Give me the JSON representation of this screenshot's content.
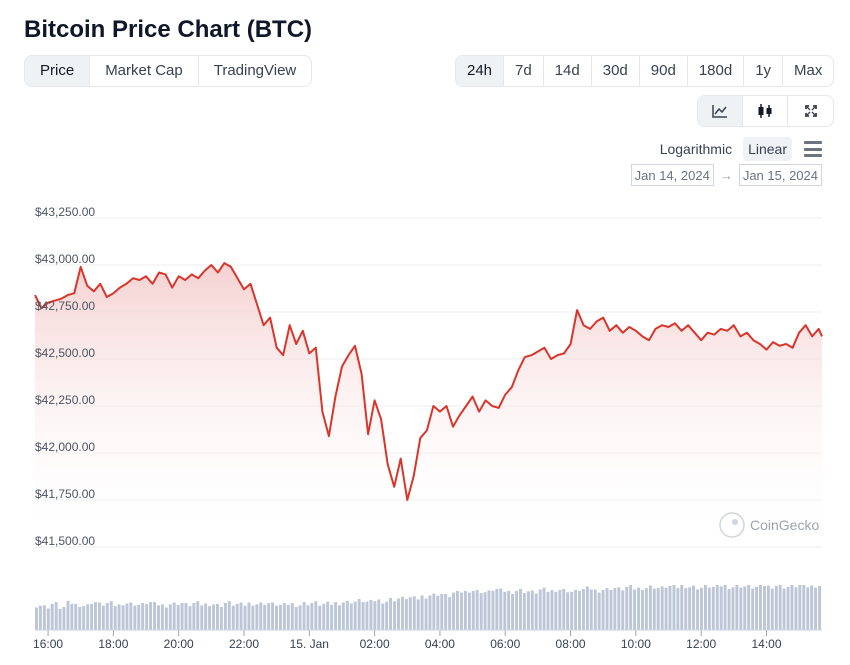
{
  "title": "Bitcoin Price Chart (BTC)",
  "view_tabs": [
    {
      "label": "Price",
      "active": true
    },
    {
      "label": "Market Cap",
      "active": false
    },
    {
      "label": "TradingView",
      "active": false
    }
  ],
  "range_tabs": [
    {
      "label": "24h",
      "active": true
    },
    {
      "label": "7d",
      "active": false
    },
    {
      "label": "14d",
      "active": false
    },
    {
      "label": "30d",
      "active": false
    },
    {
      "label": "90d",
      "active": false
    },
    {
      "label": "180d",
      "active": false
    },
    {
      "label": "1y",
      "active": false
    },
    {
      "label": "Max",
      "active": false
    }
  ],
  "chart_type_buttons": [
    {
      "icon": "line-chart-icon",
      "active": true
    },
    {
      "icon": "candlestick-icon",
      "active": false
    },
    {
      "icon": "fullscreen-icon",
      "active": false
    }
  ],
  "scale": {
    "log_label": "Logarithmic",
    "linear_label": "Linear",
    "selected": "Linear"
  },
  "date_range": {
    "from": "Jan 14, 2024",
    "to": "Jan 15, 2024",
    "arrow": "→"
  },
  "watermark": "CoinGecko",
  "colors": {
    "line": "#d9352b",
    "area_top": "#f4cccc",
    "volume": "#bcc6d6",
    "grid": "#eeeeee",
    "active_bg": "#eff2f5"
  },
  "chart_data": {
    "type": "line",
    "title": "Bitcoin Price Chart (BTC)",
    "xlabel": "",
    "ylabel": "",
    "ylim": [
      41500,
      43250
    ],
    "y_ticks": [
      43250,
      43000,
      42750,
      42500,
      42250,
      42000,
      41750,
      41500
    ],
    "y_tick_labels": [
      "$43,250.00",
      "$43,000.00",
      "$42,750.00",
      "$42,500.00",
      "$42,250.00",
      "$42,000.00",
      "$41,750.00",
      "$41,500.00"
    ],
    "x_ticks": [
      {
        "label": "16:00",
        "t": 0
      },
      {
        "label": "18:00",
        "t": 2
      },
      {
        "label": "20:00",
        "t": 4
      },
      {
        "label": "22:00",
        "t": 6
      },
      {
        "label": "15. Jan",
        "t": 8
      },
      {
        "label": "02:00",
        "t": 10
      },
      {
        "label": "04:00",
        "t": 12
      },
      {
        "label": "06:00",
        "t": 14
      },
      {
        "label": "08:00",
        "t": 16
      },
      {
        "label": "10:00",
        "t": 18
      },
      {
        "label": "12:00",
        "t": 20
      },
      {
        "label": "14:00",
        "t": 22
      }
    ],
    "x_range": [
      -0.4,
      23.7
    ],
    "grid": true,
    "legend": "none",
    "series": [
      {
        "points": [
          [
            -0.4,
            42840
          ],
          [
            -0.2,
            42770
          ],
          [
            0.0,
            42800
          ],
          [
            0.2,
            42810
          ],
          [
            0.4,
            42820
          ],
          [
            0.6,
            42840
          ],
          [
            0.8,
            42850
          ],
          [
            1.0,
            42990
          ],
          [
            1.2,
            42890
          ],
          [
            1.4,
            42860
          ],
          [
            1.6,
            42900
          ],
          [
            1.8,
            42830
          ],
          [
            2.0,
            42850
          ],
          [
            2.2,
            42880
          ],
          [
            2.4,
            42900
          ],
          [
            2.6,
            42930
          ],
          [
            2.8,
            42920
          ],
          [
            3.0,
            42940
          ],
          [
            3.2,
            42900
          ],
          [
            3.4,
            42960
          ],
          [
            3.6,
            42950
          ],
          [
            3.8,
            42880
          ],
          [
            4.0,
            42940
          ],
          [
            4.2,
            42920
          ],
          [
            4.4,
            42950
          ],
          [
            4.6,
            42930
          ],
          [
            4.8,
            42970
          ],
          [
            5.0,
            43000
          ],
          [
            5.2,
            42960
          ],
          [
            5.4,
            43010
          ],
          [
            5.6,
            42990
          ],
          [
            5.8,
            42930
          ],
          [
            6.0,
            42870
          ],
          [
            6.2,
            42900
          ],
          [
            6.4,
            42790
          ],
          [
            6.6,
            42680
          ],
          [
            6.8,
            42720
          ],
          [
            7.0,
            42560
          ],
          [
            7.2,
            42520
          ],
          [
            7.4,
            42680
          ],
          [
            7.6,
            42580
          ],
          [
            7.8,
            42650
          ],
          [
            8.0,
            42530
          ],
          [
            8.2,
            42560
          ],
          [
            8.4,
            42220
          ],
          [
            8.6,
            42090
          ],
          [
            8.8,
            42300
          ],
          [
            9.0,
            42460
          ],
          [
            9.2,
            42520
          ],
          [
            9.4,
            42570
          ],
          [
            9.6,
            42420
          ],
          [
            9.8,
            42100
          ],
          [
            10.0,
            42280
          ],
          [
            10.2,
            42180
          ],
          [
            10.4,
            41940
          ],
          [
            10.6,
            41820
          ],
          [
            10.8,
            41970
          ],
          [
            11.0,
            41750
          ],
          [
            11.2,
            41880
          ],
          [
            11.4,
            42080
          ],
          [
            11.6,
            42120
          ],
          [
            11.8,
            42250
          ],
          [
            12.0,
            42220
          ],
          [
            12.2,
            42250
          ],
          [
            12.4,
            42140
          ],
          [
            12.6,
            42200
          ],
          [
            12.8,
            42250
          ],
          [
            13.0,
            42300
          ],
          [
            13.2,
            42220
          ],
          [
            13.4,
            42280
          ],
          [
            13.6,
            42250
          ],
          [
            13.8,
            42240
          ],
          [
            14.0,
            42310
          ],
          [
            14.2,
            42350
          ],
          [
            14.4,
            42440
          ],
          [
            14.6,
            42510
          ],
          [
            14.8,
            42520
          ],
          [
            15.0,
            42540
          ],
          [
            15.2,
            42560
          ],
          [
            15.4,
            42500
          ],
          [
            15.6,
            42520
          ],
          [
            15.8,
            42530
          ],
          [
            16.0,
            42580
          ],
          [
            16.2,
            42760
          ],
          [
            16.4,
            42680
          ],
          [
            16.6,
            42660
          ],
          [
            16.8,
            42700
          ],
          [
            17.0,
            42720
          ],
          [
            17.2,
            42650
          ],
          [
            17.4,
            42680
          ],
          [
            17.6,
            42640
          ],
          [
            17.8,
            42670
          ],
          [
            18.0,
            42650
          ],
          [
            18.2,
            42620
          ],
          [
            18.4,
            42600
          ],
          [
            18.6,
            42660
          ],
          [
            18.8,
            42680
          ],
          [
            19.0,
            42670
          ],
          [
            19.2,
            42690
          ],
          [
            19.4,
            42650
          ],
          [
            19.6,
            42680
          ],
          [
            19.8,
            42640
          ],
          [
            20.0,
            42600
          ],
          [
            20.2,
            42640
          ],
          [
            20.4,
            42630
          ],
          [
            20.6,
            42660
          ],
          [
            20.8,
            42650
          ],
          [
            21.0,
            42680
          ],
          [
            21.2,
            42620
          ],
          [
            21.4,
            42640
          ],
          [
            21.6,
            42600
          ],
          [
            21.8,
            42580
          ],
          [
            22.0,
            42550
          ],
          [
            22.2,
            42590
          ],
          [
            22.4,
            42570
          ],
          [
            22.6,
            42580
          ],
          [
            22.8,
            42560
          ],
          [
            23.0,
            42640
          ],
          [
            23.2,
            42680
          ],
          [
            23.4,
            42620
          ],
          [
            23.6,
            42660
          ],
          [
            23.7,
            42620
          ]
        ]
      }
    ],
    "volume": [
      0.55,
      0.52,
      0.58,
      0.5,
      0.6,
      0.56,
      0.54,
      0.62,
      0.57,
      0.59,
      0.55,
      0.6,
      0.58,
      0.56,
      0.61,
      0.57,
      0.55,
      0.58,
      0.6,
      0.56,
      0.59,
      0.57,
      0.58,
      0.55,
      0.6,
      0.57,
      0.56,
      0.59,
      0.58,
      0.6,
      0.57,
      0.55,
      0.58,
      0.56,
      0.59,
      0.6,
      0.57,
      0.58,
      0.6,
      0.62,
      0.63,
      0.65,
      0.62,
      0.66,
      0.64,
      0.68,
      0.7,
      0.72,
      0.7,
      0.75,
      0.78,
      0.8,
      0.76,
      0.82,
      0.85,
      0.88,
      0.86,
      0.84,
      0.9,
      0.87,
      0.85,
      0.88,
      0.86,
      0.84,
      0.89,
      0.87,
      0.9,
      0.88,
      0.85,
      0.9,
      0.92,
      0.88,
      0.9,
      0.93,
      0.91,
      0.95,
      0.92,
      0.94,
      0.96,
      0.93,
      0.97,
      0.95,
      0.98,
      0.96,
      0.94,
      0.97,
      0.95,
      0.99,
      0.96,
      0.98,
      0.97,
      0.95,
      1.0,
      0.97,
      0.99,
      0.96,
      0.98,
      1.0,
      0.97,
      0.99
    ]
  }
}
